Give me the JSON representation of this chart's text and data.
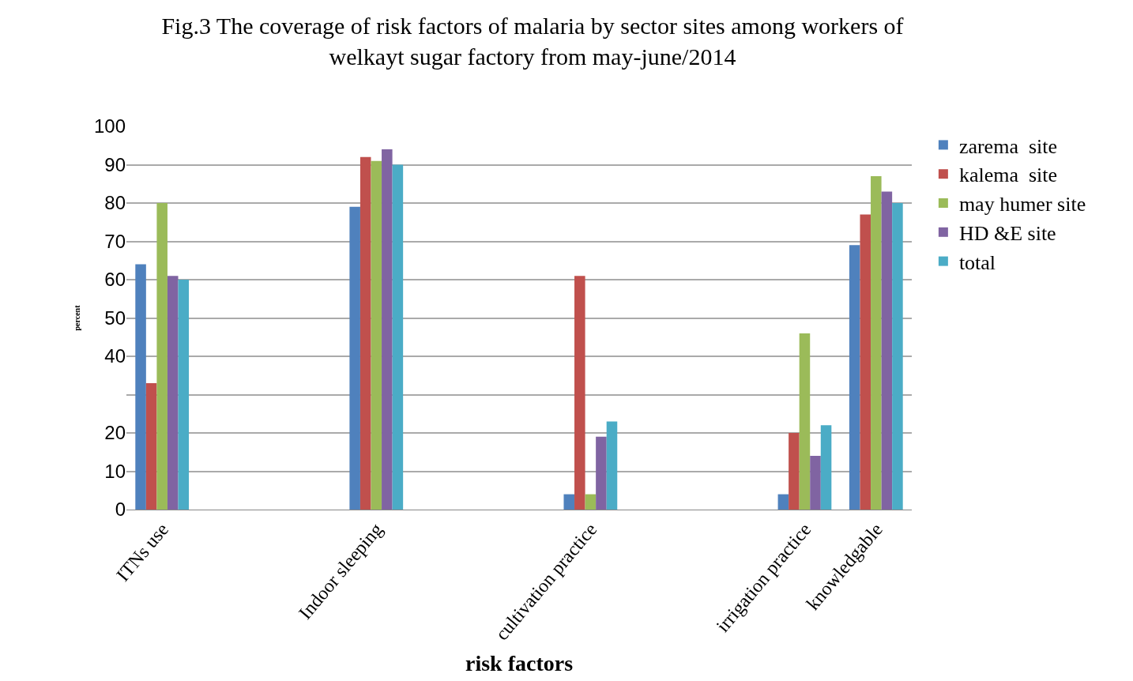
{
  "chart_data": {
    "type": "bar",
    "title": "Fig.3 The coverage of risk factors of malaria by sector sites among workers of welkayt sugar factory from may-june/2014",
    "xlabel": "risk factors",
    "ylabel": "percent",
    "categories": [
      "ITNs use",
      null,
      null,
      "Indoor sleeping",
      null,
      null,
      "cultivation practice",
      null,
      null,
      "irrigation practice",
      "knowledgable"
    ],
    "series": [
      {
        "name": "zarema  site",
        "color": "#4f81bd",
        "values": [
          64,
          null,
          null,
          79,
          null,
          null,
          4,
          null,
          null,
          4,
          69
        ]
      },
      {
        "name": "kalema  site",
        "color": "#c0504d",
        "values": [
          33,
          null,
          null,
          92,
          null,
          null,
          61,
          null,
          null,
          20,
          77
        ]
      },
      {
        "name": "may humer site",
        "color": "#9bbb59",
        "values": [
          80,
          null,
          null,
          91,
          null,
          null,
          4,
          null,
          null,
          46,
          87
        ]
      },
      {
        "name": "HD &E site",
        "color": "#8064a2",
        "values": [
          61,
          null,
          null,
          94,
          null,
          null,
          19,
          null,
          null,
          14,
          83
        ]
      },
      {
        "name": "total",
        "color": "#4bacc6",
        "values": [
          60,
          null,
          null,
          90,
          null,
          null,
          23,
          null,
          null,
          22,
          80
        ]
      }
    ],
    "ylim": [
      0,
      100
    ],
    "yticks": [
      0,
      10,
      20,
      {
        "value": 30,
        "label": null
      },
      40,
      50,
      60,
      70,
      80,
      90,
      100
    ],
    "grid": "y",
    "legend": "right"
  }
}
